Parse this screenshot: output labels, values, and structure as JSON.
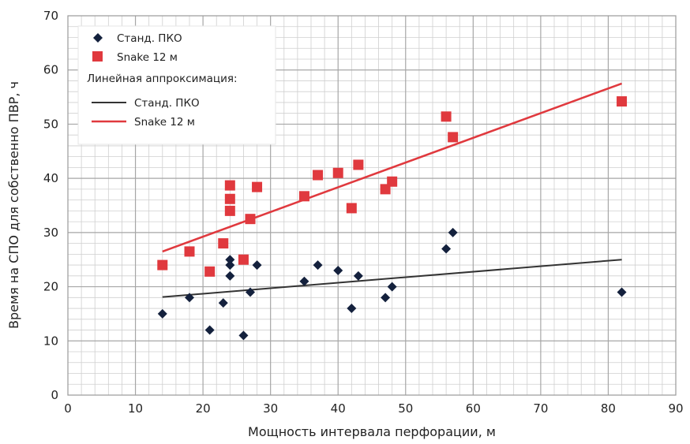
{
  "chart_data": {
    "type": "scatter",
    "title": "",
    "xlabel": "Мощность интервала перфорации, м",
    "ylabel": "Время на СПО для собственно ПВР, ч",
    "xlim": [
      0,
      90
    ],
    "ylim": [
      0,
      70
    ],
    "x_ticks": [
      "0",
      "10",
      "20",
      "30",
      "40",
      "50",
      "60",
      "70",
      "80",
      "90"
    ],
    "y_ticks": [
      "0",
      "10",
      "20",
      "30",
      "40",
      "50",
      "60",
      "70"
    ],
    "grid": true,
    "grid_minor_step": {
      "x": 2,
      "y": 2
    },
    "legend_position": "top-left",
    "legend": {
      "series_entries": [
        "Станд. ПКО",
        "Snake 12 м"
      ],
      "fit_heading": "Линейная аппроксимация:",
      "fit_entries": [
        "Станд. ПКО",
        "Snake 12 м"
      ]
    },
    "series": [
      {
        "name": "Станд. ПКО",
        "marker": "diamond",
        "color": "#14213d",
        "points": [
          [
            14,
            15
          ],
          [
            18,
            18
          ],
          [
            21,
            12
          ],
          [
            23,
            17
          ],
          [
            24,
            22
          ],
          [
            24,
            24
          ],
          [
            24,
            25
          ],
          [
            26,
            11
          ],
          [
            27,
            19
          ],
          [
            28,
            24
          ],
          [
            35,
            21
          ],
          [
            37,
            24
          ],
          [
            40,
            23
          ],
          [
            42,
            16
          ],
          [
            43,
            22
          ],
          [
            47,
            18
          ],
          [
            48,
            20
          ],
          [
            56,
            27
          ],
          [
            57,
            30
          ],
          [
            82,
            19
          ]
        ]
      },
      {
        "name": "Snake 12 м",
        "marker": "square",
        "color": "#e0393e",
        "points": [
          [
            14,
            24
          ],
          [
            18,
            26.5
          ],
          [
            21,
            22.8
          ],
          [
            23,
            28
          ],
          [
            24,
            34
          ],
          [
            24,
            36.2
          ],
          [
            24,
            38.7
          ],
          [
            26,
            25
          ],
          [
            27,
            32.5
          ],
          [
            28,
            38.4
          ],
          [
            35,
            36.7
          ],
          [
            37,
            40.6
          ],
          [
            40,
            41
          ],
          [
            42,
            34.5
          ],
          [
            43,
            42.5
          ],
          [
            47,
            38
          ],
          [
            48,
            39.4
          ],
          [
            56,
            51.4
          ],
          [
            57,
            47.6
          ],
          [
            82,
            54.2
          ]
        ]
      }
    ],
    "fit_lines": [
      {
        "name": "Станд. ПКО",
        "color": "#333333",
        "x": [
          14,
          82
        ],
        "y": [
          18.1,
          25
        ]
      },
      {
        "name": "Snake 12 м",
        "color": "#e0393e",
        "x": [
          14,
          82
        ],
        "y": [
          26.5,
          57.5
        ]
      }
    ]
  }
}
